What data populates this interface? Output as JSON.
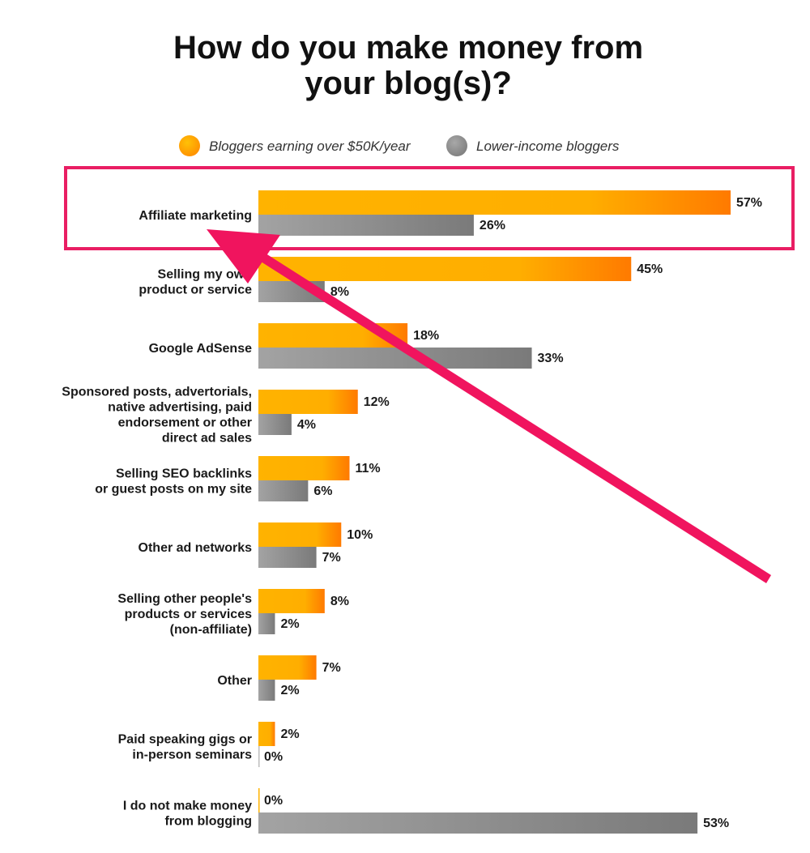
{
  "chart_data": {
    "type": "bar",
    "orientation": "horizontal",
    "title": "How do you make money from your blog(s)?",
    "title_lines": [
      "How do you make money from",
      "your blog(s)?"
    ],
    "categories": [
      [
        "Affiliate marketing"
      ],
      [
        "Selling my own",
        "product or service"
      ],
      [
        "Google AdSense"
      ],
      [
        "Sponsored posts, advertorials,",
        "native advertising, paid",
        "endorsement or other",
        "direct ad sales"
      ],
      [
        "Selling SEO backlinks",
        "or guest posts on my site"
      ],
      [
        "Other ad networks"
      ],
      [
        "Selling other people's",
        "products or services",
        "(non-affiliate)"
      ],
      [
        "Other"
      ],
      [
        "Paid speaking gigs or",
        "in-person seminars"
      ],
      [
        "I do not make money",
        "from blogging"
      ]
    ],
    "series": [
      {
        "name": "Bloggers earning over $50K/year",
        "color": "#FFB300",
        "color_end": "#FF7A00",
        "values": [
          57,
          45,
          18,
          12,
          11,
          10,
          8,
          7,
          2,
          0
        ],
        "labels": [
          "57%",
          "45%",
          "18%",
          "12%",
          "11%",
          "10%",
          "8%",
          "7%",
          "2%",
          "0%"
        ]
      },
      {
        "name": "Lower-income bloggers",
        "color": "#9E9E9E",
        "color_end": "#7A7A7A",
        "values": [
          26,
          8,
          33,
          4,
          6,
          7,
          2,
          2,
          0,
          53
        ],
        "labels": [
          "26%",
          "8%",
          "33%",
          "4%",
          "6%",
          "7%",
          "2%",
          "2%",
          "0%",
          "53%"
        ]
      }
    ],
    "xlim": [
      0,
      60
    ],
    "grid": false,
    "legend_position": "top-center",
    "highlight": {
      "category_index": 0,
      "color": "#E91E63"
    }
  }
}
